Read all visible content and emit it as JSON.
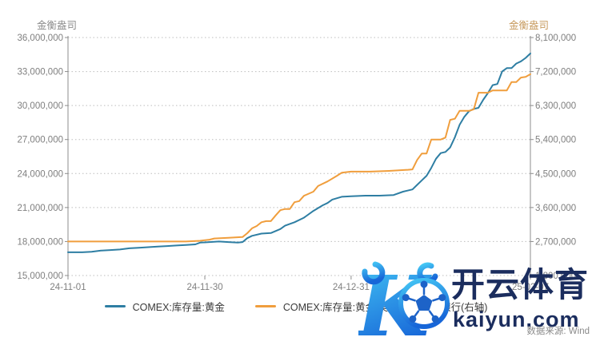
{
  "header": {
    "left_axis_title": "金衡盎司",
    "right_axis_title": "金衡盎司"
  },
  "colors": {
    "blue": "#2e7ea3",
    "orange": "#f09e3d",
    "grid": "#bdbdbd",
    "axis": "#8c8c8c",
    "tick_text": "#7f7f7f",
    "axis_title_left": "#8c8c8c",
    "axis_title_right": "#c79a5e",
    "legend_text": "#3a3a3a",
    "watermark_navy": "#1b2d5e",
    "logo_gradient_top": "#45c8f5",
    "logo_gradient_bottom": "#1766d8",
    "source_text": "#8a8a8a"
  },
  "chart_data": {
    "type": "line",
    "x_unit": "days since 2024-11-01",
    "x_ticks": [
      {
        "day": 0,
        "label": "24-11-01"
      },
      {
        "day": 29,
        "label": "24-11-30"
      },
      {
        "day": 60,
        "label": "24-12-31"
      },
      {
        "day": 98,
        "label": "25-02-07"
      }
    ],
    "x_max_day": 98,
    "left_axis": {
      "title": "金衡盎司",
      "min": 15000000,
      "max": 36000000,
      "step": 3000000,
      "tick_labels": [
        "36,000,000",
        "33,000,000",
        "30,000,000",
        "27,000,000",
        "24,000,000",
        "21,000,000",
        "18,000,000",
        "15,000,000"
      ]
    },
    "right_axis": {
      "title": "金衡盎司",
      "min": 1800000,
      "max": 8100000,
      "step": 900000,
      "tick_labels": [
        "8,100,000",
        "7,200,000",
        "6,300,000",
        "5,400,000",
        "4,500,000",
        "3,600,000",
        "2,700,000",
        "1,800,000"
      ]
    },
    "grid": "horizontal-dotted",
    "legend_position": "bottom-center",
    "series": [
      {
        "name": "COMEX:库存量:黄金",
        "axis": "left",
        "color": "#2e7ea3",
        "points": [
          [
            0,
            17050000
          ],
          [
            3,
            17050000
          ],
          [
            5,
            17100000
          ],
          [
            7,
            17200000
          ],
          [
            9,
            17250000
          ],
          [
            11,
            17300000
          ],
          [
            13,
            17400000
          ],
          [
            15,
            17450000
          ],
          [
            17,
            17500000
          ],
          [
            19,
            17550000
          ],
          [
            21,
            17600000
          ],
          [
            23,
            17650000
          ],
          [
            25,
            17700000
          ],
          [
            27,
            17750000
          ],
          [
            28,
            17900000
          ],
          [
            30,
            17950000
          ],
          [
            32,
            18000000
          ],
          [
            34,
            17950000
          ],
          [
            36,
            17900000
          ],
          [
            37,
            17950000
          ],
          [
            38,
            18300000
          ],
          [
            39,
            18500000
          ],
          [
            41,
            18700000
          ],
          [
            43,
            18750000
          ],
          [
            45,
            19100000
          ],
          [
            46,
            19400000
          ],
          [
            48,
            19700000
          ],
          [
            50,
            20100000
          ],
          [
            52,
            20700000
          ],
          [
            54,
            21200000
          ],
          [
            55,
            21400000
          ],
          [
            56,
            21700000
          ],
          [
            58,
            21950000
          ],
          [
            60,
            22000000
          ],
          [
            63,
            22050000
          ],
          [
            66,
            22050000
          ],
          [
            69,
            22100000
          ],
          [
            71,
            22400000
          ],
          [
            73,
            22600000
          ],
          [
            74,
            23000000
          ],
          [
            75,
            23400000
          ],
          [
            76,
            23800000
          ],
          [
            77,
            24500000
          ],
          [
            78,
            25300000
          ],
          [
            79,
            25800000
          ],
          [
            80,
            25900000
          ],
          [
            81,
            26300000
          ],
          [
            82,
            27200000
          ],
          [
            83,
            28300000
          ],
          [
            84,
            29000000
          ],
          [
            85,
            29500000
          ],
          [
            86,
            29700000
          ],
          [
            87,
            29800000
          ],
          [
            88,
            30500000
          ],
          [
            89,
            31100000
          ],
          [
            90,
            31800000
          ],
          [
            91,
            31900000
          ],
          [
            92,
            33000000
          ],
          [
            93,
            33300000
          ],
          [
            94,
            33300000
          ],
          [
            95,
            33700000
          ],
          [
            96,
            33900000
          ],
          [
            97,
            34200000
          ],
          [
            98,
            34600000
          ]
        ]
      },
      {
        "name": "COMEX:库存量:黄金:美国:摩根大通银行(右轴)",
        "axis": "right",
        "color": "#f09e3d",
        "points": [
          [
            0,
            2700000
          ],
          [
            10,
            2700000
          ],
          [
            20,
            2700000
          ],
          [
            25,
            2700000
          ],
          [
            28,
            2720000
          ],
          [
            30,
            2750000
          ],
          [
            31,
            2780000
          ],
          [
            34,
            2800000
          ],
          [
            37,
            2820000
          ],
          [
            38,
            2920000
          ],
          [
            39,
            3050000
          ],
          [
            40,
            3110000
          ],
          [
            41,
            3210000
          ],
          [
            42,
            3240000
          ],
          [
            43,
            3240000
          ],
          [
            44,
            3390000
          ],
          [
            45,
            3530000
          ],
          [
            46,
            3560000
          ],
          [
            47,
            3560000
          ],
          [
            48,
            3740000
          ],
          [
            49,
            3770000
          ],
          [
            50,
            3910000
          ],
          [
            52,
            4020000
          ],
          [
            53,
            4170000
          ],
          [
            55,
            4290000
          ],
          [
            57,
            4440000
          ],
          [
            58,
            4520000
          ],
          [
            60,
            4550000
          ],
          [
            64,
            4550000
          ],
          [
            68,
            4570000
          ],
          [
            72,
            4600000
          ],
          [
            73,
            4610000
          ],
          [
            74,
            4860000
          ],
          [
            75,
            5030000
          ],
          [
            76,
            5030000
          ],
          [
            77,
            5400000
          ],
          [
            79,
            5400000
          ],
          [
            80,
            5450000
          ],
          [
            81,
            5920000
          ],
          [
            82,
            5950000
          ],
          [
            83,
            6160000
          ],
          [
            85,
            6160000
          ],
          [
            86,
            6200000
          ],
          [
            87,
            6640000
          ],
          [
            89,
            6640000
          ],
          [
            90,
            6700000
          ],
          [
            93,
            6700000
          ],
          [
            94,
            6920000
          ],
          [
            95,
            6920000
          ],
          [
            96,
            7040000
          ],
          [
            97,
            7060000
          ],
          [
            98,
            7130000
          ]
        ]
      }
    ]
  },
  "legend": {
    "items": [
      {
        "label": "COMEX:库存量:黄金",
        "color": "#2e7ea3"
      },
      {
        "label": "COMEX:库存量:黄金:美国:摩根大通银行(右轴)",
        "color": "#f09e3d"
      }
    ]
  },
  "watermark": {
    "logo": "kaiyun-k-football-logo",
    "title": "开云体育",
    "domain": "kaiyun.com"
  },
  "footer": {
    "source_label": "数据来源: Wind"
  }
}
